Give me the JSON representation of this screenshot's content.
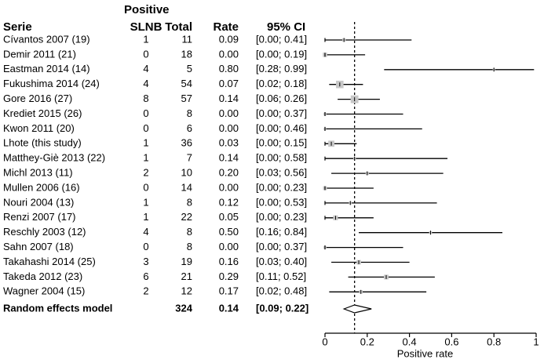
{
  "chart_data": {
    "type": "forest",
    "headers": {
      "study": "Serie",
      "positive_top": "Positive",
      "positive_bottom": "SLNB",
      "total": "Total",
      "rate": "Rate",
      "ci": "95% CI"
    },
    "studies": [
      {
        "label": "Cívantos 2007 (19)",
        "positive": "1",
        "total": "11",
        "rate_text": "0.09",
        "ci_text": "[0.00; 0.41]",
        "rate": 0.09,
        "lo": 0.0,
        "hi": 0.41
      },
      {
        "label": "Demir 2011 (21)",
        "positive": "0",
        "total": "18",
        "rate_text": "0.00",
        "ci_text": "[0.00; 0.19]",
        "rate": 0.0,
        "lo": 0.0,
        "hi": 0.19
      },
      {
        "label": "Eastman 2014 (14)",
        "positive": "4",
        "total": "5",
        "rate_text": "0.80",
        "ci_text": "[0.28; 0.99]",
        "rate": 0.8,
        "lo": 0.28,
        "hi": 0.99
      },
      {
        "label": "Fukushima 2014 (24)",
        "positive": "4",
        "total": "54",
        "rate_text": "0.07",
        "ci_text": "[0.02; 0.18]",
        "rate": 0.07,
        "lo": 0.02,
        "hi": 0.18
      },
      {
        "label": "Gore 2016 (27)",
        "positive": "8",
        "total": "57",
        "rate_text": "0.14",
        "ci_text": "[0.06; 0.26]",
        "rate": 0.14,
        "lo": 0.06,
        "hi": 0.26
      },
      {
        "label": "Krediet 2015 (26)",
        "positive": "0",
        "total": "8",
        "rate_text": "0.00",
        "ci_text": "[0.00; 0.37]",
        "rate": 0.0,
        "lo": 0.0,
        "hi": 0.37
      },
      {
        "label": "Kwon 2011 (20)",
        "positive": "0",
        "total": "6",
        "rate_text": "0.00",
        "ci_text": "[0.00; 0.46]",
        "rate": 0.0,
        "lo": 0.0,
        "hi": 0.46
      },
      {
        "label": "Lhote (this study)",
        "positive": "1",
        "total": "36",
        "rate_text": "0.03",
        "ci_text": "[0.00; 0.15]",
        "rate": 0.03,
        "lo": 0.0,
        "hi": 0.15
      },
      {
        "label": "Matthey-Giè 2013 (22)",
        "positive": "1",
        "total": "7",
        "rate_text": "0.14",
        "ci_text": "[0.00; 0.58]",
        "rate": 0.14,
        "lo": 0.0,
        "hi": 0.58
      },
      {
        "label": "Michl 2013 (11)",
        "positive": "2",
        "total": "10",
        "rate_text": "0.20",
        "ci_text": "[0.03; 0.56]",
        "rate": 0.2,
        "lo": 0.03,
        "hi": 0.56
      },
      {
        "label": "Mullen 2006 (16)",
        "positive": "0",
        "total": "14",
        "rate_text": "0.00",
        "ci_text": "[0.00; 0.23]",
        "rate": 0.0,
        "lo": 0.0,
        "hi": 0.23
      },
      {
        "label": "Nouri 2004 (13)",
        "positive": "1",
        "total": "8",
        "rate_text": "0.12",
        "ci_text": "[0.00; 0.53]",
        "rate": 0.12,
        "lo": 0.0,
        "hi": 0.53
      },
      {
        "label": "Renzi 2007 (17)",
        "positive": "1",
        "total": "22",
        "rate_text": "0.05",
        "ci_text": "[0.00; 0.23]",
        "rate": 0.05,
        "lo": 0.0,
        "hi": 0.23
      },
      {
        "label": "Reschly 2003 (12)",
        "positive": "4",
        "total": "8",
        "rate_text": "0.50",
        "ci_text": "[0.16; 0.84]",
        "rate": 0.5,
        "lo": 0.16,
        "hi": 0.84
      },
      {
        "label": "Sahn 2007 (18)",
        "positive": "0",
        "total": "8",
        "rate_text": "0.00",
        "ci_text": "[0.00; 0.37]",
        "rate": 0.0,
        "lo": 0.0,
        "hi": 0.37
      },
      {
        "label": "Takahashi 2014 (25)",
        "positive": "3",
        "total": "19",
        "rate_text": "0.16",
        "ci_text": "[0.03; 0.40]",
        "rate": 0.16,
        "lo": 0.03,
        "hi": 0.4
      },
      {
        "label": "Takeda 2012 (23)",
        "positive": "6",
        "total": "21",
        "rate_text": "0.29",
        "ci_text": "[0.11; 0.52]",
        "rate": 0.29,
        "lo": 0.11,
        "hi": 0.52
      },
      {
        "label": "Wagner 2004 (15)",
        "positive": "2",
        "total": "12",
        "rate_text": "0.17",
        "ci_text": "[0.02; 0.48]",
        "rate": 0.17,
        "lo": 0.02,
        "hi": 0.48
      }
    ],
    "summary": {
      "label": "Random effects model",
      "total": "324",
      "rate_text": "0.14",
      "ci_text": "[0.09; 0.22]",
      "rate": 0.14,
      "lo": 0.09,
      "hi": 0.22
    },
    "reference_line": 0.14,
    "xlabel": "Positive rate",
    "xlim": [
      0,
      1
    ],
    "xticks": [
      {
        "value": 0,
        "label": "0"
      },
      {
        "value": 0.2,
        "label": "0.2"
      },
      {
        "value": 0.4,
        "label": "0.4"
      },
      {
        "value": 0.6,
        "label": "0.6"
      },
      {
        "value": 0.8,
        "label": "0.8"
      },
      {
        "value": 1,
        "label": "1"
      }
    ],
    "colors": {
      "line": "#000000",
      "square": "#c8c8c8",
      "text": "#000000"
    }
  }
}
